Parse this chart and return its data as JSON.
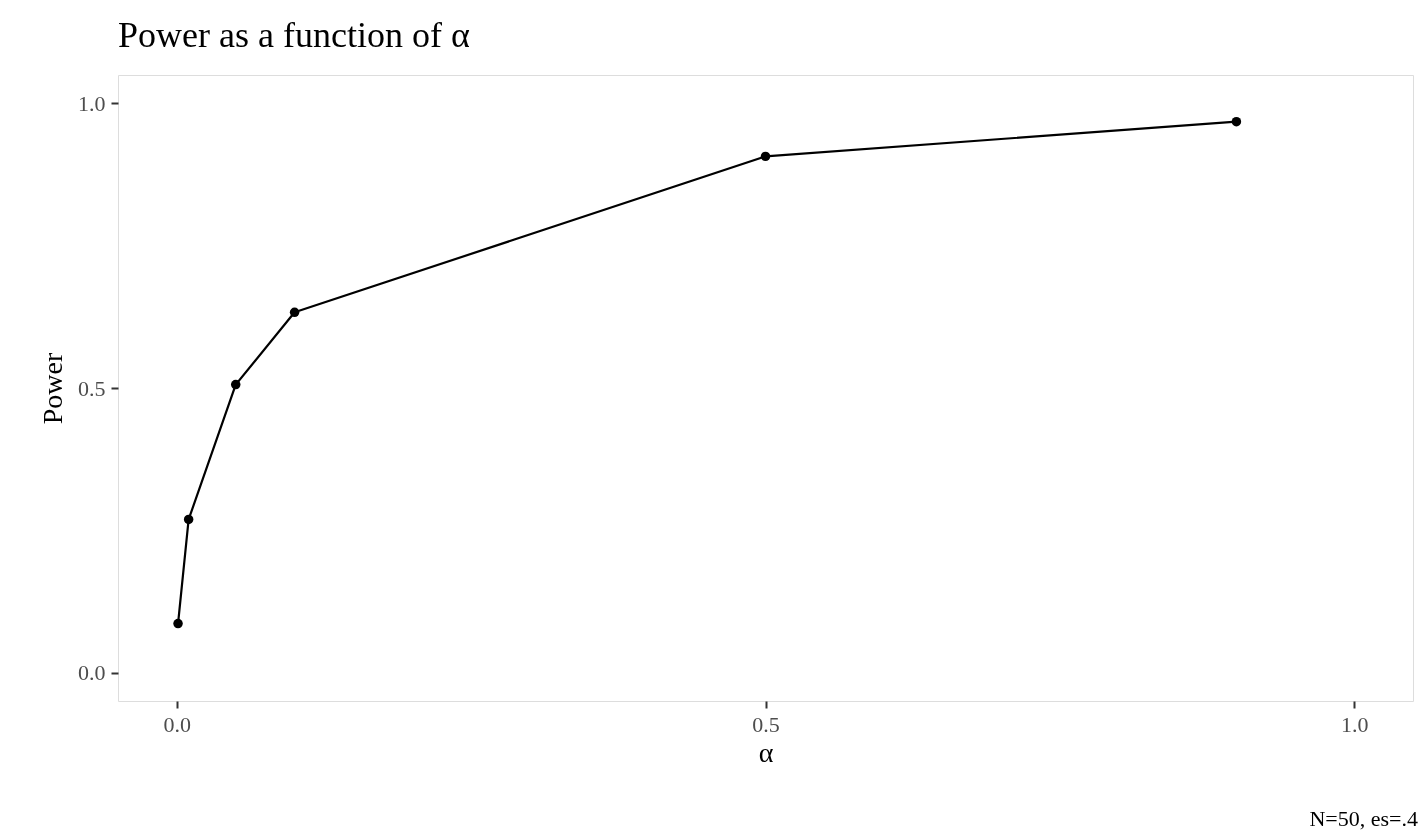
{
  "chart_data": {
    "type": "line",
    "title": "Power as a function of  α",
    "xlabel": "α",
    "ylabel": "Power",
    "x": [
      0.001,
      0.01,
      0.05,
      0.1,
      0.5,
      0.9
    ],
    "series": [
      {
        "color": "#000000",
        "values": [
          0.086,
          0.269,
          0.506,
          0.633,
          0.907,
          0.968
        ]
      }
    ],
    "xlim": [
      -0.05,
      1.05
    ],
    "ylim": [
      -0.05,
      1.05
    ],
    "xticks": [
      {
        "value": 0,
        "label": "0.0"
      },
      {
        "value": 0.5,
        "label": "0.5"
      },
      {
        "value": 1,
        "label": "1.0"
      }
    ],
    "yticks": [
      {
        "value": 0,
        "label": "0.0"
      },
      {
        "value": 0.5,
        "label": "0.5"
      },
      {
        "value": 1,
        "label": "1.0"
      }
    ],
    "marker": "circle",
    "line_style": "solid",
    "annotations": [
      "N=50, es=.4"
    ]
  }
}
